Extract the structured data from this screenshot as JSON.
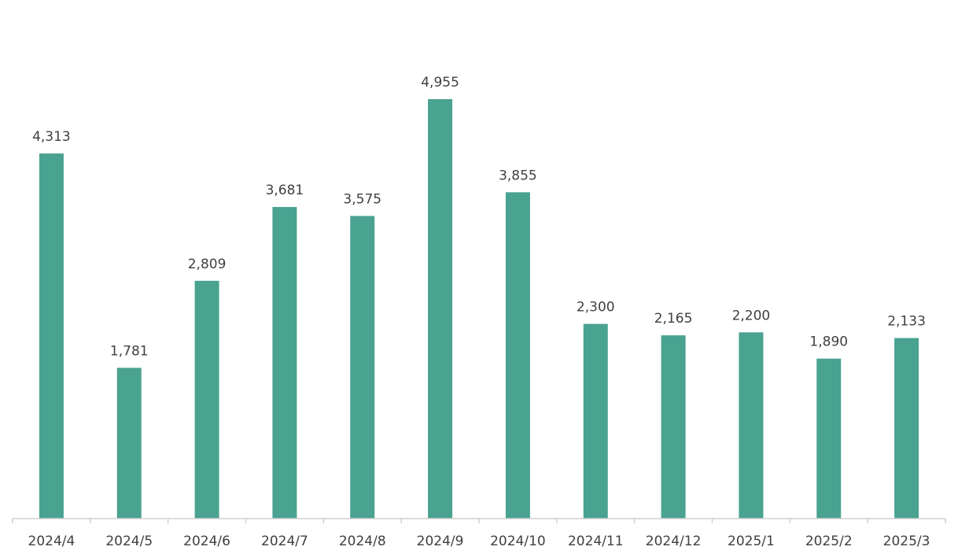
{
  "chart_data": {
    "type": "bar",
    "categories": [
      "2024/4",
      "2024/5",
      "2024/6",
      "2024/7",
      "2024/8",
      "2024/9",
      "2024/10",
      "2024/11",
      "2024/12",
      "2025/1",
      "2025/2",
      "2025/3"
    ],
    "values": [
      4313,
      1781,
      2809,
      3681,
      3575,
      4955,
      3855,
      2300,
      2165,
      2200,
      1890,
      2133
    ],
    "value_labels": [
      "4,313",
      "1,781",
      "2,809",
      "3,681",
      "3,575",
      "4,955",
      "3,855",
      "2,300",
      "2,165",
      "2,200",
      "1,890",
      "2,133"
    ],
    "title": "",
    "xlabel": "",
    "ylabel": "",
    "ylim": [
      0,
      5000
    ],
    "grid": false,
    "legend": "none",
    "bar_color": "#4aa291",
    "axis_color": "#d0d0d0",
    "label_color": "#404040"
  }
}
